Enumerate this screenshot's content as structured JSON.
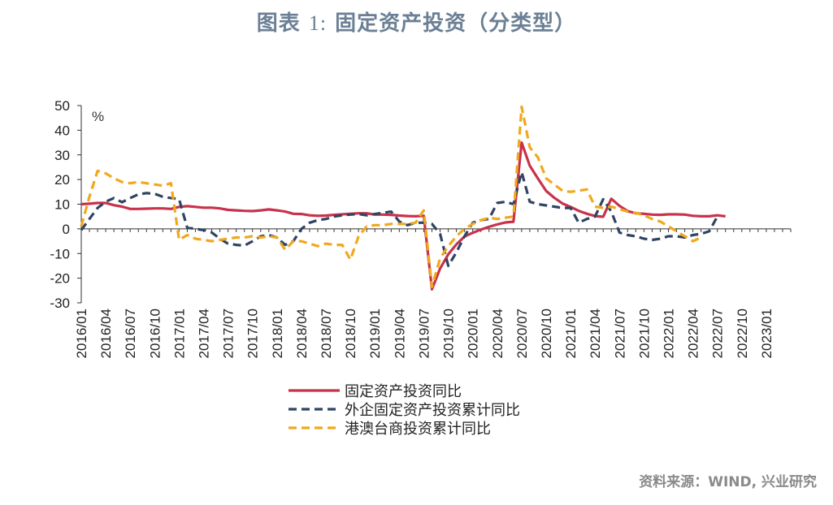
{
  "title_prefix": "图表",
  "title_number": "1:",
  "title_text": "固定资产投资（分类型）",
  "source": "资料来源：WIND, 兴业研究",
  "chart_data": {
    "type": "line",
    "unit_label": "%",
    "ylim": [
      -30,
      50
    ],
    "yticks": [
      50,
      40,
      30,
      20,
      10,
      0,
      -10,
      -20,
      -30
    ],
    "xticklabels": [
      "2016/01",
      "2016/04",
      "2016/07",
      "2016/10",
      "2017/01",
      "2017/04",
      "2017/07",
      "2017/10",
      "2018/01",
      "2018/04",
      "2018/07",
      "2018/10",
      "2019/01",
      "2019/04",
      "2019/07",
      "2019/10",
      "2020/01",
      "2020/04",
      "2020/07",
      "2020/10",
      "2021/01",
      "2021/04",
      "2021/07",
      "2021/10",
      "2022/01",
      "2022/04",
      "2022/07",
      "2022/10",
      "2023/01"
    ],
    "legend_position": "bottom",
    "series": [
      {
        "name": "固定资产投资同比",
        "color": "#c8324b",
        "style": "solid",
        "values": [
          10.0,
          10.2,
          10.5,
          10.5,
          9.6,
          9.0,
          8.1,
          8.1,
          8.2,
          8.3,
          8.3,
          8.1,
          8.9,
          9.2,
          8.9,
          8.6,
          8.6,
          8.3,
          7.7,
          7.5,
          7.3,
          7.2,
          7.5,
          7.9,
          7.5,
          7.0,
          6.1,
          6.0,
          5.5,
          5.3,
          5.4,
          5.7,
          5.9,
          6.1,
          6.3,
          6.3,
          5.8,
          5.8,
          5.7,
          5.4,
          5.2,
          5.1,
          5.3,
          -24.5,
          -16.1,
          -10.3,
          -6.3,
          -3.1,
          -1.6,
          -0.3,
          0.8,
          1.8,
          2.6,
          2.9,
          35.0,
          25.6,
          20.4,
          15.4,
          12.6,
          10.3,
          8.9,
          7.3,
          6.1,
          5.2,
          4.9,
          12.2,
          9.3,
          7.2,
          6.3,
          6.1,
          5.8,
          5.7,
          5.9,
          5.9,
          5.8,
          5.3,
          5.1,
          5.1,
          5.5,
          5.1
        ],
        "start_index": 0
      },
      {
        "name": "外企固定资产投资累计同比",
        "color": "#2f4463",
        "style": "dashed",
        "values": [
          -0.5,
          4.0,
          8.5,
          11.0,
          12.5,
          10.8,
          12.5,
          14.0,
          14.5,
          14.2,
          13.0,
          12.5,
          12.0,
          0.5,
          0.0,
          -0.5,
          -1.5,
          -4.0,
          -6.0,
          -6.5,
          -6.8,
          -5.0,
          -3.0,
          -2.5,
          -3.5,
          -6.5,
          -5.0,
          0.0,
          2.5,
          3.5,
          4.0,
          5.0,
          5.5,
          5.8,
          6.0,
          5.5,
          6.0,
          6.5,
          7.0,
          3.0,
          1.5,
          2.5,
          2.5,
          2.0,
          -2.0,
          -15.0,
          -9.5,
          -3.0,
          2.5,
          3.5,
          4.0,
          10.5,
          11.0,
          10.0,
          23.0,
          11.0,
          10.0,
          9.5,
          9.0,
          8.5,
          8.5,
          2.5,
          4.0,
          5.0,
          12.0,
          7.0,
          -1.5,
          -2.5,
          -3.0,
          -4.0,
          -4.5,
          -4.0,
          -3.0,
          -3.0,
          -3.5,
          -2.5,
          -2.0,
          -1.0,
          5.0
        ],
        "start_index": 0
      },
      {
        "name": "港澳台商投资累计同比",
        "color": "#f0a81e",
        "style": "dashed",
        "values": [
          1.0,
          13.0,
          23.5,
          22.5,
          20.5,
          19.0,
          18.5,
          19.0,
          18.5,
          18.0,
          17.5,
          18.5,
          -4.5,
          -2.5,
          -4.0,
          -4.5,
          -5.0,
          -4.5,
          -4.0,
          -3.5,
          -3.5,
          -3.0,
          -3.5,
          -3.0,
          -3.5,
          -8.5,
          -5.0,
          -5.0,
          -6.0,
          -7.0,
          -6.0,
          -6.5,
          -6.5,
          -12.5,
          -3.0,
          1.0,
          1.5,
          1.5,
          2.0,
          2.0,
          2.0,
          2.5,
          7.5,
          -23.5,
          -12.0,
          -7.0,
          -3.0,
          0.0,
          2.0,
          3.5,
          4.5,
          4.0,
          4.5,
          5.0,
          49.5,
          33.0,
          29.0,
          20.5,
          18.0,
          15.5,
          15.0,
          15.5,
          16.0,
          9.0,
          8.5,
          9.0,
          8.0,
          7.0,
          6.5,
          5.5,
          4.0,
          3.0,
          1.0,
          -1.0,
          -3.0,
          -5.0,
          -3.5
        ],
        "start_index": 0
      }
    ]
  }
}
